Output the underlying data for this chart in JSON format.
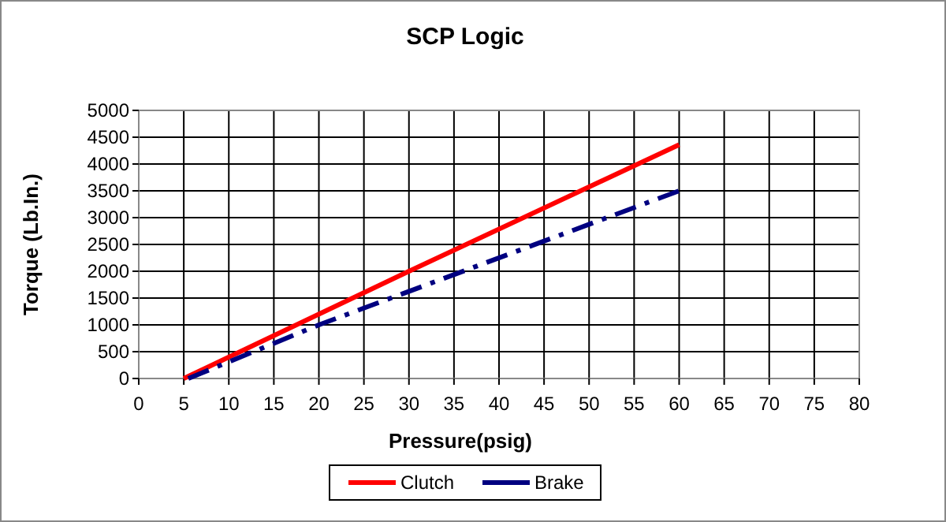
{
  "chart_data": {
    "type": "line",
    "title": "SCP Logic",
    "xlabel": "Pressure(psig)",
    "ylabel": "Torque (Lb.In.)",
    "xlim": [
      0,
      80
    ],
    "xticks": [
      0,
      5,
      10,
      15,
      20,
      25,
      30,
      35,
      40,
      45,
      50,
      55,
      60,
      65,
      70,
      75,
      80
    ],
    "ylim": [
      0,
      5000
    ],
    "yticks": [
      0,
      500,
      1000,
      1500,
      2000,
      2500,
      3000,
      3500,
      4000,
      4500,
      5000
    ],
    "grid": true,
    "legend": "bottom",
    "series": [
      {
        "name": "Clutch",
        "color": "#ff0000",
        "x": [
          5,
          30,
          60
        ],
        "values": [
          0,
          2000,
          4360
        ],
        "line_style": "solid"
      },
      {
        "name": "Brake",
        "color": "#000080",
        "x": [
          5.5,
          20,
          60
        ],
        "values": [
          0,
          1000,
          3500
        ],
        "line_style": "dashed"
      }
    ]
  }
}
